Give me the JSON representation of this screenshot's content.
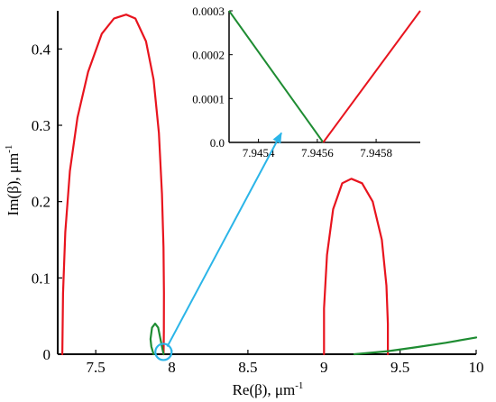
{
  "chart_data": {
    "type": "line",
    "xlabel": "Re(β), μm",
    "xlabel_sup": "-1",
    "ylabel": "Im(β), μm",
    "ylabel_sup": "-1",
    "xlim": [
      7.25,
      10.0
    ],
    "ylim": [
      0,
      0.45
    ],
    "xticks": [
      "7.5",
      "8",
      "8.5",
      "9",
      "9.5",
      "10"
    ],
    "xtick_values": [
      7.5,
      8.0,
      8.5,
      9.0,
      9.5,
      10.0
    ],
    "yticks": [
      "0",
      "0.1",
      "0.2",
      "0.3",
      "0.4"
    ],
    "ytick_values": [
      0,
      0.1,
      0.2,
      0.3,
      0.4
    ],
    "grid": false,
    "colors": {
      "red": "#e8141e",
      "green": "#1e8c32",
      "cyan": "#2bb5e8"
    },
    "series": [
      {
        "color": "red",
        "points": [
          [
            7.28,
            0.0
          ],
          [
            7.285,
            0.08
          ],
          [
            7.3,
            0.16
          ],
          [
            7.33,
            0.24
          ],
          [
            7.38,
            0.31
          ],
          [
            7.45,
            0.37
          ],
          [
            7.54,
            0.42
          ],
          [
            7.62,
            0.44
          ],
          [
            7.7,
            0.445
          ],
          [
            7.76,
            0.44
          ],
          [
            7.83,
            0.41
          ],
          [
            7.88,
            0.36
          ],
          [
            7.915,
            0.29
          ],
          [
            7.935,
            0.21
          ],
          [
            7.945,
            0.14
          ],
          [
            7.948,
            0.08
          ],
          [
            7.9475,
            0.03
          ],
          [
            7.9456,
            0.0
          ]
        ]
      },
      {
        "color": "green",
        "points": [
          [
            7.88,
            0.0
          ],
          [
            7.865,
            0.01
          ],
          [
            7.86,
            0.02
          ],
          [
            7.87,
            0.035
          ],
          [
            7.89,
            0.04
          ],
          [
            7.91,
            0.035
          ],
          [
            7.925,
            0.02
          ],
          [
            7.935,
            0.01
          ],
          [
            7.9456,
            0.0
          ]
        ]
      },
      {
        "color": "red",
        "points": [
          [
            9.0,
            0.0
          ],
          [
            9.0,
            0.06
          ],
          [
            9.02,
            0.13
          ],
          [
            9.06,
            0.19
          ],
          [
            9.12,
            0.224
          ],
          [
            9.18,
            0.23
          ],
          [
            9.25,
            0.224
          ],
          [
            9.32,
            0.2
          ],
          [
            9.38,
            0.15
          ],
          [
            9.41,
            0.09
          ],
          [
            9.42,
            0.04
          ],
          [
            9.42,
            0.0
          ]
        ]
      },
      {
        "color": "green",
        "points": [
          [
            9.2,
            0.0
          ],
          [
            9.42,
            0.004
          ],
          [
            9.6,
            0.009
          ],
          [
            9.8,
            0.015
          ],
          [
            10.0,
            0.022
          ]
        ]
      }
    ],
    "inset": {
      "xlim": [
        7.9453,
        7.94595
      ],
      "ylim": [
        0,
        0.0003
      ],
      "xticks": [
        "7.9454",
        "7.9456",
        "7.9458"
      ],
      "xtick_values": [
        7.9454,
        7.9456,
        7.9458
      ],
      "yticks": [
        "0.0",
        "0.0001",
        "0.0002",
        "0.0003"
      ],
      "ytick_values": [
        0,
        0.0001,
        0.0002,
        0.0003
      ],
      "series": [
        {
          "color": "green",
          "points": [
            [
              7.9453,
              0.0003
            ],
            [
              7.94562,
              0.0
            ]
          ]
        },
        {
          "color": "red",
          "points": [
            [
              7.94562,
              0.0
            ],
            [
              7.94595,
              0.0003
            ]
          ]
        }
      ]
    },
    "annotations": [
      {
        "type": "circle",
        "x": 7.945,
        "y": 0.003,
        "color": "cyan"
      },
      {
        "type": "arrow",
        "from": [
          7.97,
          0.01
        ],
        "to": [
          8.72,
          0.29
        ],
        "color": "cyan"
      }
    ]
  }
}
